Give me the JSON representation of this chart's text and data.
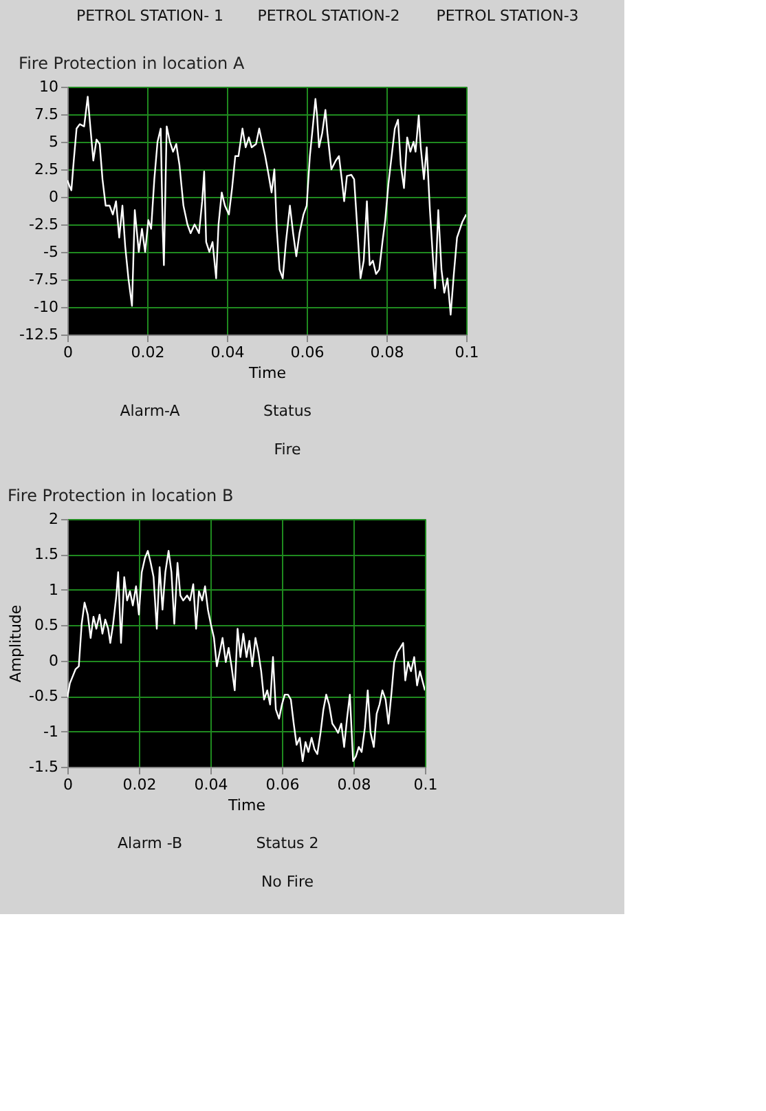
{
  "chart_data": [
    {
      "type": "other",
      "annotations": [
        "PETROL STATION- 1",
        "PETROL STATION-2",
        "PETROL STATION-3"
      ]
    },
    {
      "type": "line",
      "title": "Fire Protection in location A",
      "xlabel": "Time",
      "xlim": [
        0,
        0.1
      ],
      "xticks": [
        0,
        0.02,
        0.04,
        0.06,
        0.08,
        0.1
      ],
      "ylim": [
        -12.5,
        10
      ],
      "yticks": [
        -12.5,
        -10,
        -7.5,
        -5,
        -2.5,
        0,
        2.5,
        5,
        7.5,
        10
      ],
      "grid": true,
      "series": [
        {
          "color": "#ffffff",
          "x": [
            0,
            0.0005,
            0.001,
            0.0016,
            0.0023,
            0.0031,
            0.0042,
            0.0051,
            0.0055,
            0.0065,
            0.0073,
            0.0081,
            0.0088,
            0.0096,
            0.0106,
            0.0114,
            0.0122,
            0.013,
            0.0138,
            0.0145,
            0.0153,
            0.0162,
            0.0169,
            0.0179,
            0.0187,
            0.0195,
            0.0203,
            0.021,
            0.0218,
            0.0226,
            0.0234,
            0.0239,
            0.0242,
            0.0249,
            0.0257,
            0.0265,
            0.0273,
            0.0281,
            0.0291,
            0.0301,
            0.0309,
            0.0319,
            0.033,
            0.0338,
            0.0343,
            0.0348,
            0.0356,
            0.0364,
            0.0373,
            0.0379,
            0.0387,
            0.0395,
            0.0405,
            0.0413,
            0.0421,
            0.0429,
            0.0439,
            0.0447,
            0.0455,
            0.0462,
            0.0473,
            0.0481,
            0.0488,
            0.0496,
            0.0504,
            0.0512,
            0.0519,
            0.0525,
            0.0532,
            0.054,
            0.0548,
            0.0558,
            0.0566,
            0.0574,
            0.0582,
            0.0592,
            0.06,
            0.0608,
            0.0616,
            0.0622,
            0.0626,
            0.0631,
            0.0639,
            0.0647,
            0.0652,
            0.0662,
            0.0673,
            0.0681,
            0.0688,
            0.0694,
            0.0701,
            0.0712,
            0.0719,
            0.0727,
            0.0735,
            0.0743,
            0.0751,
            0.0758,
            0.0766,
            0.0774,
            0.0782,
            0.079,
            0.0797,
            0.0805,
            0.0813,
            0.0821,
            0.0829,
            0.0836,
            0.0844,
            0.0852,
            0.086,
            0.0868,
            0.0873,
            0.0881,
            0.0886,
            0.0894,
            0.0901,
            0.0909,
            0.0917,
            0.0922,
            0.093,
            0.0938,
            0.0945,
            0.0953,
            0.0961,
            0.0969,
            0.0977,
            0.099,
            0.1
          ],
          "values": [
            1.5,
            1.0,
            0.6,
            3.3,
            6.2,
            6.6,
            6.4,
            9.1,
            7.4,
            3.3,
            5.2,
            4.8,
            1.6,
            -0.8,
            -0.8,
            -1.6,
            -0.4,
            -3.7,
            -0.8,
            -4.5,
            -7.4,
            -9.9,
            -1.2,
            -5.0,
            -2.9,
            -5.0,
            -2.1,
            -2.9,
            1.6,
            5.0,
            6.2,
            -2.9,
            -6.2,
            6.4,
            5.0,
            4.1,
            4.8,
            2.9,
            -0.8,
            -2.5,
            -3.3,
            -2.5,
            -3.3,
            -0.4,
            2.3,
            -4.1,
            -5.0,
            -4.1,
            -7.4,
            -2.5,
            0.4,
            -0.8,
            -1.6,
            0.8,
            3.7,
            3.7,
            6.2,
            4.5,
            5.4,
            4.5,
            4.8,
            6.2,
            5.0,
            3.7,
            2.1,
            0.4,
            2.5,
            -2.9,
            -6.6,
            -7.4,
            -4.1,
            -0.8,
            -3.3,
            -5.4,
            -3.3,
            -1.6,
            -0.8,
            3.7,
            6.6,
            8.9,
            7.4,
            4.5,
            5.8,
            7.9,
            5.8,
            2.5,
            3.3,
            3.7,
            1.6,
            -0.4,
            1.9,
            2.0,
            1.6,
            -2.9,
            -7.4,
            -5.8,
            -0.4,
            -6.2,
            -5.8,
            -7.0,
            -6.6,
            -4.1,
            -2.1,
            1.2,
            3.7,
            6.2,
            7.0,
            2.9,
            0.8,
            5.4,
            4.1,
            5.0,
            4.1,
            7.4,
            4.5,
            1.6,
            4.5,
            -1.2,
            -5.8,
            -8.3,
            -1.2,
            -6.6,
            -8.7,
            -7.4,
            -10.7,
            -7.0,
            -3.7,
            -2.3,
            -1.6
          ]
        }
      ]
    },
    {
      "type": "other",
      "annotations": [
        "Alarm-A",
        "Status",
        "Fire"
      ]
    },
    {
      "type": "line",
      "title": "Fire Protection in location B",
      "xlabel": "Time",
      "ylabel": "Amplitude",
      "xlim": [
        0,
        0.1
      ],
      "xticks": [
        0,
        0.02,
        0.04,
        0.06,
        0.08,
        0.1
      ],
      "ylim": [
        -1.5,
        2
      ],
      "yticks": [
        -1.5,
        -1,
        -0.5,
        0,
        0.5,
        1,
        1.5,
        2
      ],
      "grid": true,
      "series": [
        {
          "color": "#ffffff",
          "x": [
            0,
            0.0007,
            0.0015,
            0.0023,
            0.0032,
            0.004,
            0.0048,
            0.0057,
            0.0065,
            0.0073,
            0.0081,
            0.009,
            0.0098,
            0.0106,
            0.0114,
            0.012,
            0.0128,
            0.0137,
            0.0142,
            0.015,
            0.0159,
            0.0167,
            0.0175,
            0.0183,
            0.0192,
            0.02,
            0.0208,
            0.0217,
            0.0225,
            0.0233,
            0.0241,
            0.025,
            0.0258,
            0.0266,
            0.0274,
            0.0283,
            0.0291,
            0.0299,
            0.0308,
            0.0316,
            0.0324,
            0.0335,
            0.0343,
            0.0352,
            0.036,
            0.0368,
            0.0377,
            0.0385,
            0.0393,
            0.0401,
            0.041,
            0.0418,
            0.0426,
            0.0434,
            0.0443,
            0.0451,
            0.0459,
            0.0468,
            0.0476,
            0.0484,
            0.0492,
            0.0501,
            0.0509,
            0.0517,
            0.0526,
            0.0534,
            0.0542,
            0.055,
            0.0559,
            0.0567,
            0.0575,
            0.0583,
            0.0592,
            0.06,
            0.0608,
            0.0617,
            0.0625,
            0.0633,
            0.0641,
            0.065,
            0.0658,
            0.0666,
            0.0674,
            0.0683,
            0.0691,
            0.0699,
            0.0708,
            0.0716,
            0.0724,
            0.0732,
            0.0741,
            0.0749,
            0.0757,
            0.0766,
            0.0774,
            0.0782,
            0.079,
            0.0799,
            0.0807,
            0.0815,
            0.0823,
            0.0832,
            0.084,
            0.0848,
            0.0857,
            0.0865,
            0.0873,
            0.0881,
            0.089,
            0.0898,
            0.0906,
            0.0914,
            0.0923,
            0.0931,
            0.0939,
            0.0945,
            0.0953,
            0.0961,
            0.097,
            0.0978,
            0.0986,
            0.1
          ],
          "values": [
            -0.52,
            -0.32,
            -0.22,
            -0.12,
            -0.08,
            0.52,
            0.82,
            0.65,
            0.32,
            0.62,
            0.45,
            0.65,
            0.38,
            0.58,
            0.45,
            0.25,
            0.52,
            0.92,
            1.25,
            0.25,
            1.18,
            0.85,
            0.98,
            0.78,
            1.05,
            0.65,
            1.25,
            1.45,
            1.55,
            1.38,
            1.18,
            0.45,
            1.32,
            0.72,
            1.25,
            1.55,
            1.25,
            0.52,
            1.38,
            0.92,
            0.85,
            0.92,
            0.85,
            1.08,
            0.45,
            0.98,
            0.85,
            1.05,
            0.72,
            0.52,
            0.32,
            -0.08,
            0.12,
            0.32,
            -0.02,
            0.18,
            -0.08,
            -0.42,
            0.45,
            0.05,
            0.38,
            0.05,
            0.28,
            -0.08,
            0.32,
            0.12,
            -0.15,
            -0.55,
            -0.42,
            -0.62,
            0.05,
            -0.69,
            -0.82,
            -0.62,
            -0.48,
            -0.48,
            -0.55,
            -0.89,
            -1.19,
            -1.09,
            -1.42,
            -1.15,
            -1.29,
            -1.09,
            -1.25,
            -1.32,
            -1.02,
            -0.69,
            -0.48,
            -0.62,
            -0.89,
            -0.95,
            -1.02,
            -0.89,
            -1.22,
            -0.82,
            -0.48,
            -1.42,
            -1.35,
            -1.22,
            -1.29,
            -0.95,
            -0.42,
            -1.02,
            -1.22,
            -0.75,
            -0.62,
            -0.42,
            -0.55,
            -0.89,
            -0.48,
            -0.02,
            0.12,
            0.18,
            0.25,
            -0.28,
            -0.02,
            -0.15,
            0.05,
            -0.35,
            -0.15,
            -0.42
          ]
        }
      ]
    },
    {
      "type": "other",
      "annotations": [
        "Alarm -B",
        "Status  2",
        "No Fire"
      ]
    }
  ]
}
